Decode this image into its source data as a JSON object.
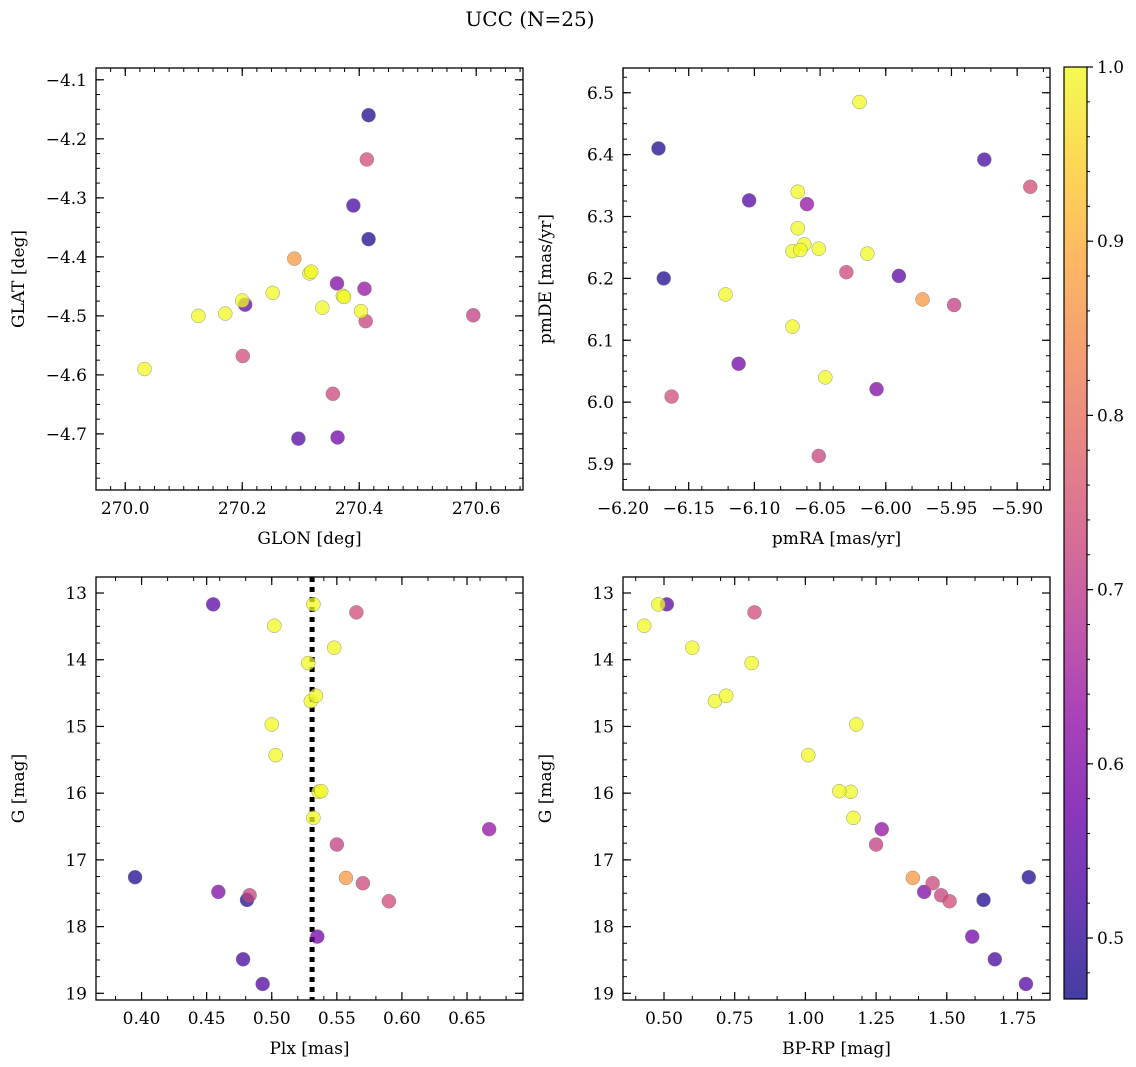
{
  "figure": {
    "title": "UCC (N=25)"
  },
  "colorbar": {
    "min": 0.465,
    "max": 1.0,
    "ticks": [
      0.5,
      0.6,
      0.7,
      0.8,
      0.9,
      1.0
    ],
    "tick_labels": [
      "0.5",
      "0.6",
      "0.7",
      "0.8",
      "0.9",
      "1.0"
    ],
    "colormap": "plasma",
    "colormap_stops": [
      "#0d0887",
      "#41049d",
      "#6a00a8",
      "#8f0da4",
      "#b12a90",
      "#cc4778",
      "#e16462",
      "#f2844b",
      "#fca636",
      "#fcce25",
      "#f0f921"
    ],
    "alpha": 0.75
  },
  "members": [
    {
      "glon": 270.033,
      "glat": -4.59,
      "pmra": -6.071,
      "pmde": 6.122,
      "plx": 0.5,
      "g": 14.97,
      "bprp": 1.18,
      "prob": 1.0
    },
    {
      "glon": 270.125,
      "glat": -4.5,
      "pmra": -6.071,
      "pmde": 6.244,
      "plx": 0.532,
      "g": 13.17,
      "bprp": 0.48,
      "prob": 1.0
    },
    {
      "glon": 270.171,
      "glat": -4.496,
      "pmra": -6.067,
      "pmde": 6.281,
      "plx": 0.502,
      "g": 13.49,
      "bprp": 0.43,
      "prob": 1.0
    },
    {
      "glon": 270.2,
      "glat": -4.474,
      "pmra": -6.062,
      "pmde": 6.255,
      "plx": 0.528,
      "g": 14.05,
      "bprp": 0.81,
      "prob": 1.0
    },
    {
      "glon": 270.252,
      "glat": -4.461,
      "pmra": -6.067,
      "pmde": 6.34,
      "plx": 0.548,
      "g": 13.82,
      "bprp": 0.6,
      "prob": 1.0
    },
    {
      "glon": 270.315,
      "glat": -4.428,
      "pmra": -6.065,
      "pmde": 6.246,
      "plx": 0.53,
      "g": 14.62,
      "bprp": 0.68,
      "prob": 1.0
    },
    {
      "glon": 270.318,
      "glat": -4.425,
      "pmra": -6.051,
      "pmde": 6.248,
      "plx": 0.534,
      "g": 14.54,
      "bprp": 0.72,
      "prob": 1.0
    },
    {
      "glon": 270.337,
      "glat": -4.486,
      "pmra": -6.014,
      "pmde": 6.24,
      "plx": 0.536,
      "g": 15.98,
      "bprp": 1.16,
      "prob": 1.0
    },
    {
      "glon": 270.372,
      "glat": -4.466,
      "pmra": -6.122,
      "pmde": 6.174,
      "plx": 0.503,
      "g": 15.43,
      "bprp": 1.01,
      "prob": 1.0
    },
    {
      "glon": 270.374,
      "glat": -4.468,
      "pmra": -6.046,
      "pmde": 6.04,
      "plx": 0.538,
      "g": 15.97,
      "bprp": 1.12,
      "prob": 1.0
    },
    {
      "glon": 270.403,
      "glat": -4.492,
      "pmra": -6.02,
      "pmde": 6.485,
      "plx": 0.532,
      "g": 16.37,
      "bprp": 1.17,
      "prob": 1.0
    },
    {
      "glon": 270.289,
      "glat": -4.403,
      "pmra": -5.972,
      "pmde": 6.166,
      "plx": 0.557,
      "g": 17.27,
      "bprp": 1.38,
      "prob": 0.87
    },
    {
      "glon": 270.413,
      "glat": -4.235,
      "pmra": -5.89,
      "pmde": 6.348,
      "plx": 0.565,
      "g": 13.29,
      "bprp": 0.82,
      "prob": 0.74
    },
    {
      "glon": 270.201,
      "glat": -4.568,
      "pmra": -6.163,
      "pmde": 6.009,
      "plx": 0.59,
      "g": 17.62,
      "bprp": 1.51,
      "prob": 0.74
    },
    {
      "glon": 270.355,
      "glat": -4.632,
      "pmra": -6.03,
      "pmde": 6.21,
      "plx": 0.57,
      "g": 17.35,
      "bprp": 1.45,
      "prob": 0.73
    },
    {
      "glon": 270.411,
      "glat": -4.509,
      "pmra": -6.051,
      "pmde": 5.913,
      "plx": 0.483,
      "g": 17.53,
      "bprp": 1.48,
      "prob": 0.72
    },
    {
      "glon": 270.595,
      "glat": -4.499,
      "pmra": -5.948,
      "pmde": 6.157,
      "plx": 0.55,
      "g": 16.77,
      "bprp": 1.25,
      "prob": 0.71
    },
    {
      "glon": 270.409,
      "glat": -4.454,
      "pmra": -6.06,
      "pmde": 6.32,
      "plx": 0.667,
      "g": 16.54,
      "bprp": 1.27,
      "prob": 0.63
    },
    {
      "glon": 270.362,
      "glat": -4.445,
      "pmra": -6.007,
      "pmde": 6.021,
      "plx": 0.459,
      "g": 17.48,
      "bprp": 1.42,
      "prob": 0.6
    },
    {
      "glon": 270.363,
      "glat": -4.706,
      "pmra": -6.112,
      "pmde": 6.062,
      "plx": 0.535,
      "g": 18.15,
      "bprp": 1.59,
      "prob": 0.58
    },
    {
      "glon": 270.205,
      "glat": -4.481,
      "pmra": -5.99,
      "pmde": 6.204,
      "plx": 0.455,
      "g": 13.17,
      "bprp": 0.51,
      "prob": 0.55
    },
    {
      "glon": 270.296,
      "glat": -4.708,
      "pmra": -6.104,
      "pmde": 6.326,
      "plx": 0.493,
      "g": 18.86,
      "bprp": 1.78,
      "prob": 0.54
    },
    {
      "glon": 270.39,
      "glat": -4.313,
      "pmra": -5.925,
      "pmde": 6.392,
      "plx": 0.478,
      "g": 18.49,
      "bprp": 1.67,
      "prob": 0.52
    },
    {
      "glon": 270.416,
      "glat": -4.16,
      "pmra": -6.169,
      "pmde": 6.2,
      "plx": 0.395,
      "g": 17.26,
      "bprp": 1.79,
      "prob": 0.48
    },
    {
      "glon": 270.416,
      "glat": -4.37,
      "pmra": -6.173,
      "pmde": 6.41,
      "plx": 0.481,
      "g": 17.6,
      "bprp": 1.63,
      "prob": 0.48
    }
  ],
  "chart_data": [
    {
      "type": "scatter",
      "title": "",
      "xlabel": "GLON [deg]",
      "ylabel": "GLAT [deg]",
      "x_field": "glon",
      "y_field": "glat",
      "xlim": [
        269.95,
        270.68
      ],
      "ylim": [
        -4.795,
        -4.08
      ],
      "xticks": [
        270.0,
        270.2,
        270.4,
        270.6
      ],
      "xtick_labels": [
        "270.0",
        "270.2",
        "270.4",
        "270.6"
      ],
      "yticks": [
        -4.1,
        -4.2,
        -4.3,
        -4.4,
        -4.5,
        -4.6,
        -4.7
      ],
      "ytick_labels": [
        "−4.1",
        "−4.2",
        "−4.3",
        "−4.4",
        "−4.5",
        "−4.6",
        "−4.7"
      ],
      "y_inverted": false,
      "color_field": "prob"
    },
    {
      "type": "scatter",
      "title": "",
      "xlabel": "pmRA [mas/yr]",
      "ylabel": "pmDE [mas/yr]",
      "x_field": "pmra",
      "y_field": "pmde",
      "xlim": [
        -6.2,
        -5.875
      ],
      "ylim": [
        5.858,
        6.54
      ],
      "xticks": [
        -6.2,
        -6.15,
        -6.1,
        -6.05,
        -6.0,
        -5.95,
        -5.9
      ],
      "xtick_labels": [
        "−6.20",
        "−6.15",
        "−6.10",
        "−6.05",
        "−6.00",
        "−5.95",
        "−5.90"
      ],
      "yticks": [
        5.9,
        6.0,
        6.1,
        6.2,
        6.3,
        6.4,
        6.5
      ],
      "ytick_labels": [
        "5.9",
        "6.0",
        "6.1",
        "6.2",
        "6.3",
        "6.4",
        "6.5"
      ],
      "y_inverted": false,
      "color_field": "prob"
    },
    {
      "type": "scatter",
      "title": "",
      "xlabel": "Plx [mas]",
      "ylabel": "G [mag]",
      "x_field": "plx",
      "y_field": "g",
      "xlim": [
        0.365,
        0.693
      ],
      "ylim": [
        12.76,
        19.1
      ],
      "xticks": [
        0.4,
        0.45,
        0.5,
        0.55,
        0.6,
        0.65
      ],
      "xtick_labels": [
        "0.40",
        "0.45",
        "0.50",
        "0.55",
        "0.60",
        "0.65"
      ],
      "yticks": [
        13,
        14,
        15,
        16,
        17,
        18,
        19
      ],
      "ytick_labels": [
        "13",
        "14",
        "15",
        "16",
        "17",
        "18",
        "19"
      ],
      "y_inverted": true,
      "vline": 0.531,
      "color_field": "prob"
    },
    {
      "type": "scatter",
      "title": "",
      "xlabel": "BP-RP [mag]",
      "ylabel": "G [mag]",
      "x_field": "bprp",
      "y_field": "g",
      "xlim": [
        0.355,
        1.865
      ],
      "ylim": [
        12.76,
        19.1
      ],
      "xticks": [
        0.5,
        0.75,
        1.0,
        1.25,
        1.5,
        1.75
      ],
      "xtick_labels": [
        "0.50",
        "0.75",
        "1.00",
        "1.25",
        "1.50",
        "1.75"
      ],
      "yticks": [
        13,
        14,
        15,
        16,
        17,
        18,
        19
      ],
      "ytick_labels": [
        "13",
        "14",
        "15",
        "16",
        "17",
        "18",
        "19"
      ],
      "y_inverted": true,
      "color_field": "prob"
    }
  ]
}
